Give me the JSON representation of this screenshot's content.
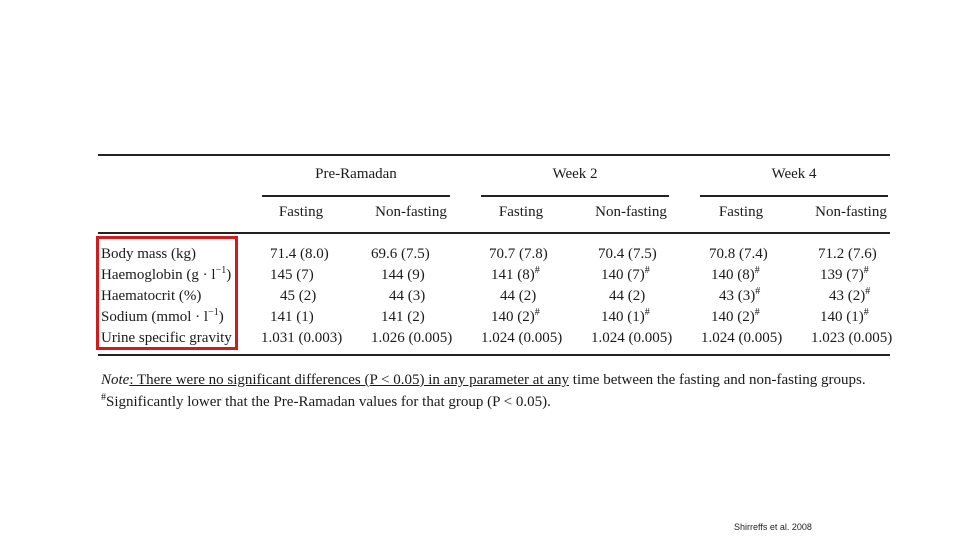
{
  "table": {
    "groups": [
      "Pre-Ramadan",
      "Week 2",
      "Week 4"
    ],
    "subheaders": [
      "Fasting",
      "Non-fasting",
      "Fasting",
      "Non-fasting",
      "Fasting",
      "Non-fasting"
    ],
    "rows": [
      {
        "label": "Body mass (kg)",
        "cells": [
          "71.4 (8.0)",
          "69.6 (7.5)",
          "70.7 (7.8)",
          "70.4 (7.5)",
          "70.8 (7.4)",
          "71.2 (7.6)"
        ]
      },
      {
        "label": "Haemoglobin (g · l",
        "label_sup": "−1",
        "label_tail": ")",
        "cells": [
          "145 (7)",
          "144 (9)",
          "141 (8)",
          "140 (7)",
          "140 (8)",
          "139 (7)"
        ]
      },
      {
        "label": "Haematocrit (%)",
        "cells": [
          "45 (2)",
          "44 (3)",
          "44 (2)",
          "44 (2)",
          "43 (3)",
          "43 (2)"
        ]
      },
      {
        "label": "Sodium (mmol · l",
        "label_sup": "−1",
        "label_tail": ")",
        "cells": [
          "141 (1)",
          "141 (2)",
          "140 (2)",
          "140 (1)",
          "140 (2)",
          "140 (1)"
        ]
      },
      {
        "label": "Urine specific gravity",
        "cells": [
          "1.031 (0.003)",
          "1.026 (0.005)",
          "1.024 (0.005)",
          "1.024 (0.005)",
          "1.024 (0.005)",
          "1.023 (0.005)"
        ]
      }
    ],
    "hash": "#"
  },
  "note": {
    "prefix": "Note",
    "underlined": ": There were no significant differences (P < 0.05) in any parameter at any",
    "rest": " time between the fasting and non-fasting groups."
  },
  "note2": "Significantly lower that the Pre-Ramadan values for that group (P < 0.05).",
  "citation": "Shirreffs et al. 2008",
  "colors": {
    "highlight": "#d01c1c"
  }
}
